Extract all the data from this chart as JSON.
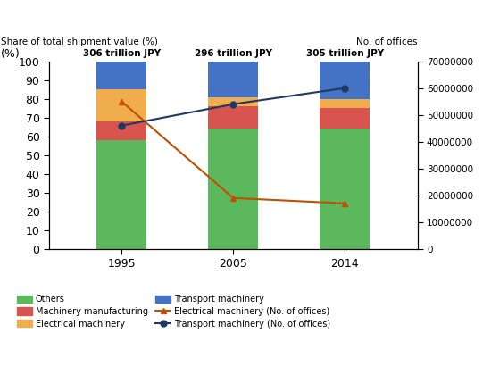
{
  "years": [
    1995,
    2005,
    2014
  ],
  "year_labels": [
    "1995",
    "2005",
    "2014"
  ],
  "totals": [
    "306 trillion JPY",
    "296 trillion JPY",
    "305 trillion JPY"
  ],
  "bar_data": {
    "Others": [
      58,
      64,
      64
    ],
    "Machinery manufacturing": [
      10,
      12,
      11
    ],
    "Electrical machinery": [
      17,
      5,
      5
    ],
    "Transport machinery": [
      15,
      19,
      20
    ]
  },
  "bar_colors": {
    "Others": "#5cb85c",
    "Machinery manufacturing": "#d9534f",
    "Electrical machinery": "#f0ad4e",
    "Transport machinery": "#4472c4"
  },
  "line_electrical": [
    55000000,
    19000000,
    17000000
  ],
  "line_transport": [
    46000000,
    54000000,
    60000000
  ],
  "line_color_electrical": "#c05000",
  "line_color_transport": "#1f3864",
  "left_ylabel": "(%)",
  "left_title": "Share of total shipment value (%)",
  "right_title": "No. of offices",
  "ylim_left": [
    0,
    100
  ],
  "ylim_right": [
    0,
    70000000
  ],
  "yticks_right": [
    0,
    10000000,
    20000000,
    30000000,
    40000000,
    50000000,
    60000000,
    70000000
  ],
  "yticks_left": [
    0,
    10,
    20,
    30,
    40,
    50,
    60,
    70,
    80,
    90,
    100
  ],
  "bar_width": 0.45,
  "fig_width": 5.5,
  "fig_height": 4.29
}
